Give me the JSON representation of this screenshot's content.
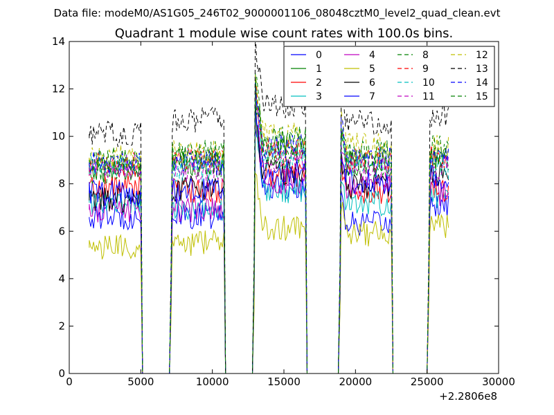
{
  "header_text": "Data file: modeM0/AS1G05_246T02_9000001106_08048cztM0_level2_quad_clean.evt",
  "chart_data": {
    "type": "line",
    "title": "Quadrant 1 module wise count rates with 100.0s bins.",
    "xlabel": "",
    "ylabel": "",
    "x_offset_label": "+2.2806e8",
    "xlim": [
      0,
      30000
    ],
    "ylim": [
      0,
      14
    ],
    "x_ticks": [
      0,
      5000,
      10000,
      15000,
      20000,
      25000,
      30000
    ],
    "x_tick_labels": [
      "0",
      "5000",
      "10000",
      "15000",
      "20000",
      "25000",
      "30000"
    ],
    "y_ticks": [
      0,
      2,
      4,
      6,
      8,
      10,
      12,
      14
    ],
    "y_tick_labels": [
      "0",
      "2",
      "4",
      "6",
      "8",
      "10",
      "12",
      "14"
    ],
    "grid": false,
    "legend_position": "top-right",
    "segments": [
      {
        "start": 1400,
        "end": 5000
      },
      {
        "start": 7200,
        "end": 10800
      },
      {
        "start": 13000,
        "end": 16500
      },
      {
        "start": 19000,
        "end": 22500
      },
      {
        "start": 25200,
        "end": 26500
      }
    ],
    "gaps_at_zero": [
      [
        5200,
        7100
      ],
      [
        11000,
        12900
      ],
      [
        16900,
        18900
      ],
      [
        22800,
        25100
      ]
    ],
    "series": [
      {
        "name": "0",
        "color": "#0000ff",
        "dashed": false,
        "levels": [
          6.6,
          6.6,
          7.9,
          6.3,
          7.1
        ]
      },
      {
        "name": "1",
        "color": "#008000",
        "dashed": false,
        "levels": [
          8.6,
          8.9,
          9.6,
          8.9,
          9.1
        ]
      },
      {
        "name": "2",
        "color": "#ff0000",
        "dashed": false,
        "levels": [
          7.9,
          7.7,
          8.4,
          7.6,
          7.7
        ]
      },
      {
        "name": "3",
        "color": "#00bfbf",
        "dashed": false,
        "levels": [
          7.2,
          6.9,
          7.7,
          7.2,
          7.4
        ]
      },
      {
        "name": "4",
        "color": "#bf00bf",
        "dashed": false,
        "levels": [
          6.9,
          6.9,
          8.1,
          7.9,
          7.6
        ]
      },
      {
        "name": "5",
        "color": "#bfbf00",
        "dashed": false,
        "levels": [
          5.3,
          5.5,
          6.1,
          5.9,
          6.2
        ]
      },
      {
        "name": "6",
        "color": "#000000",
        "dashed": false,
        "levels": [
          7.3,
          7.8,
          8.5,
          7.9,
          8.3
        ]
      },
      {
        "name": "7",
        "color": "#0000ff",
        "dashed": false,
        "levels": [
          7.6,
          7.7,
          8.6,
          8.1,
          8.3
        ]
      },
      {
        "name": "8",
        "color": "#008000",
        "dashed": true,
        "levels": [
          8.5,
          8.8,
          9.2,
          8.8,
          8.9
        ]
      },
      {
        "name": "9",
        "color": "#ff0000",
        "dashed": true,
        "levels": [
          8.8,
          9.0,
          9.4,
          9.0,
          9.1
        ]
      },
      {
        "name": "10",
        "color": "#00bfbf",
        "dashed": true,
        "levels": [
          8.8,
          8.6,
          9.1,
          8.8,
          8.7
        ]
      },
      {
        "name": "11",
        "color": "#bf00bf",
        "dashed": true,
        "levels": [
          8.7,
          8.5,
          9.0,
          8.6,
          8.7
        ]
      },
      {
        "name": "12",
        "color": "#bfbf00",
        "dashed": true,
        "levels": [
          9.1,
          9.3,
          10.1,
          9.6,
          9.6
        ]
      },
      {
        "name": "13",
        "color": "#000000",
        "dashed": true,
        "levels": [
          10.1,
          10.7,
          11.3,
          10.6,
          10.9
        ]
      },
      {
        "name": "14",
        "color": "#0000ff",
        "dashed": true,
        "levels": [
          8.9,
          8.9,
          9.6,
          9.2,
          9.3
        ]
      },
      {
        "name": "15",
        "color": "#008000",
        "dashed": true,
        "levels": [
          9.0,
          9.3,
          9.9,
          9.3,
          9.5
        ]
      }
    ]
  }
}
